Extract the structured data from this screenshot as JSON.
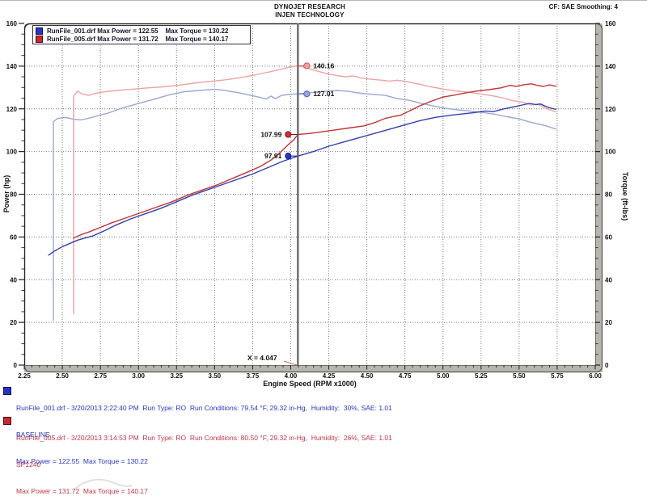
{
  "header": {
    "line1": "DYNOJET RESEARCH",
    "line2": "INJEN TECHNOLOGY",
    "right": "CF: SAE  Smoothing: 4"
  },
  "legend": {
    "rows": [
      {
        "color": "#2832c8",
        "border": "#10104a",
        "text": "RunFile_001.drf Max Power = 122.55    Max Torque = 130.22"
      },
      {
        "color": "#c82832",
        "border": "#4a1010",
        "text": "RunFile_005.drf Max Power = 131.72    Max Torque = 140.17"
      }
    ]
  },
  "chart_data": {
    "type": "line",
    "title": "",
    "xlabel": "Engine Speed (RPM x1000)",
    "ylabel_left": "Power (hp)",
    "ylabel_right": "Torque (ft-lbs)",
    "xlim": [
      2.25,
      6.0
    ],
    "ylim": [
      0,
      160
    ],
    "x_tick_labels": [
      "2.25",
      "2.50",
      "2.75",
      "3.00",
      "3.25",
      "3.50",
      "3.75",
      "4.00",
      "4.25",
      "4.50",
      "4.75",
      "5.00",
      "5.25",
      "5.50",
      "5.75",
      "6.00"
    ],
    "y_tick_labels": [
      "0",
      "20",
      "40",
      "60",
      "80",
      "100",
      "120",
      "140",
      "160"
    ],
    "x_minor_step": 0.05,
    "y_minor_step": 5,
    "grid": "dotted",
    "grid_color": "#777777",
    "cursor": {
      "x": 4.047,
      "label": "X = 4.047",
      "line_color": "#6b6b6b",
      "values": [
        {
          "series": "RunFile_005 Torque",
          "value": 140.16,
          "label": "140.16",
          "side": "right",
          "fill": "#f0a0a0",
          "stroke": "#b86060"
        },
        {
          "series": "RunFile_001 Torque",
          "value": 127.01,
          "label": "127.01",
          "side": "right",
          "fill": "#97a2e0",
          "stroke": "#5868b0"
        },
        {
          "series": "RunFile_005 Power",
          "value": 107.99,
          "label": "107.99",
          "side": "left",
          "fill": "#d23030",
          "stroke": "#7a1818"
        },
        {
          "series": "RunFile_001 Power",
          "value": 97.91,
          "label": "97.91",
          "side": "left",
          "fill": "#2636c6",
          "stroke": "#141e78"
        }
      ]
    },
    "series": [
      {
        "name": "RunFile_001 Torque",
        "color": "#9aa6d4",
        "points": [
          [
            2.441,
            21
          ],
          [
            2.441,
            114
          ],
          [
            2.47,
            115.5
          ],
          [
            2.52,
            116
          ],
          [
            2.57,
            115.2
          ],
          [
            2.62,
            114.8
          ],
          [
            2.67,
            115.5
          ],
          [
            2.72,
            116.5
          ],
          [
            2.8,
            118
          ],
          [
            2.9,
            120.5
          ],
          [
            3.0,
            122.5
          ],
          [
            3.1,
            124.5
          ],
          [
            3.2,
            126.5
          ],
          [
            3.3,
            128
          ],
          [
            3.4,
            128.6
          ],
          [
            3.5,
            129.2
          ],
          [
            3.58,
            128.5
          ],
          [
            3.66,
            127.5
          ],
          [
            3.74,
            126.3
          ],
          [
            3.8,
            125.3
          ],
          [
            3.84,
            124.6
          ],
          [
            3.87,
            126
          ],
          [
            3.9,
            124.8
          ],
          [
            3.94,
            126.3
          ],
          [
            3.99,
            126.8
          ],
          [
            4.047,
            127.01
          ],
          [
            4.12,
            127.5
          ],
          [
            4.22,
            128.2
          ],
          [
            4.3,
            128.6
          ],
          [
            4.38,
            128.2
          ],
          [
            4.46,
            127.3
          ],
          [
            4.54,
            126.8
          ],
          [
            4.62,
            126.3
          ],
          [
            4.7,
            124.8
          ],
          [
            4.78,
            124
          ],
          [
            4.86,
            122.5
          ],
          [
            4.94,
            121.3
          ],
          [
            5.02,
            120.2
          ],
          [
            5.1,
            119.5
          ],
          [
            5.18,
            119
          ],
          [
            5.26,
            118.3
          ],
          [
            5.34,
            117.5
          ],
          [
            5.42,
            116.3
          ],
          [
            5.5,
            115.3
          ],
          [
            5.56,
            114
          ],
          [
            5.62,
            113
          ],
          [
            5.68,
            112
          ],
          [
            5.72,
            111
          ],
          [
            5.74,
            110.6
          ]
        ]
      },
      {
        "name": "RunFile_005 Torque",
        "color": "#eda2a2",
        "points": [
          [
            2.574,
            24
          ],
          [
            2.574,
            126
          ],
          [
            2.6,
            128.3
          ],
          [
            2.63,
            127
          ],
          [
            2.67,
            126.3
          ],
          [
            2.72,
            127.3
          ],
          [
            2.78,
            128
          ],
          [
            2.86,
            128.6
          ],
          [
            2.96,
            129.2
          ],
          [
            3.06,
            129.8
          ],
          [
            3.16,
            130.3
          ],
          [
            3.26,
            131
          ],
          [
            3.36,
            132
          ],
          [
            3.46,
            132.8
          ],
          [
            3.56,
            133.5
          ],
          [
            3.66,
            134.5
          ],
          [
            3.76,
            135.8
          ],
          [
            3.86,
            137.3
          ],
          [
            3.94,
            138.6
          ],
          [
            4.0,
            139.7
          ],
          [
            4.047,
            140.16
          ],
          [
            4.1,
            139.3
          ],
          [
            4.16,
            138
          ],
          [
            4.22,
            136.8
          ],
          [
            4.3,
            135.6
          ],
          [
            4.36,
            135
          ],
          [
            4.41,
            135.4
          ],
          [
            4.47,
            134.4
          ],
          [
            4.54,
            133.8
          ],
          [
            4.6,
            133.4
          ],
          [
            4.65,
            133
          ],
          [
            4.7,
            133.4
          ],
          [
            4.76,
            132.8
          ],
          [
            4.84,
            131.6
          ],
          [
            4.92,
            130.3
          ],
          [
            5.0,
            129.3
          ],
          [
            5.08,
            128.4
          ],
          [
            5.16,
            127.8
          ],
          [
            5.24,
            127
          ],
          [
            5.32,
            126.2
          ],
          [
            5.4,
            125
          ],
          [
            5.46,
            123.8
          ],
          [
            5.52,
            123.2
          ],
          [
            5.58,
            121.8
          ],
          [
            5.62,
            122.2
          ],
          [
            5.66,
            120.8
          ],
          [
            5.7,
            119.6
          ],
          [
            5.74,
            118.6
          ]
        ]
      },
      {
        "name": "RunFile_001 Power",
        "color": "#3340b0",
        "points": [
          [
            2.41,
            51.5
          ],
          [
            2.45,
            53.5
          ],
          [
            2.5,
            55.5
          ],
          [
            2.55,
            57
          ],
          [
            2.6,
            58.5
          ],
          [
            2.65,
            59.5
          ],
          [
            2.7,
            60.5
          ],
          [
            2.78,
            63
          ],
          [
            2.85,
            65.5
          ],
          [
            2.95,
            68.5
          ],
          [
            3.05,
            71
          ],
          [
            3.15,
            73.5
          ],
          [
            3.25,
            76.5
          ],
          [
            3.35,
            79.5
          ],
          [
            3.45,
            82
          ],
          [
            3.55,
            84.5
          ],
          [
            3.65,
            87
          ],
          [
            3.75,
            89.5
          ],
          [
            3.85,
            92.5
          ],
          [
            3.95,
            95.5
          ],
          [
            4.047,
            97.91
          ],
          [
            4.15,
            100
          ],
          [
            4.25,
            102.5
          ],
          [
            4.35,
            104.5
          ],
          [
            4.45,
            106.5
          ],
          [
            4.55,
            108.5
          ],
          [
            4.65,
            110.5
          ],
          [
            4.75,
            112.5
          ],
          [
            4.85,
            114.5
          ],
          [
            4.95,
            116
          ],
          [
            5.05,
            117
          ],
          [
            5.15,
            117.8
          ],
          [
            5.2,
            118.2
          ],
          [
            5.28,
            119
          ],
          [
            5.33,
            118.7
          ],
          [
            5.4,
            120
          ],
          [
            5.47,
            121
          ],
          [
            5.52,
            121.8
          ],
          [
            5.57,
            122.55
          ],
          [
            5.61,
            122
          ],
          [
            5.64,
            122.3
          ],
          [
            5.68,
            121
          ],
          [
            5.71,
            120.3
          ],
          [
            5.74,
            119.8
          ]
        ]
      },
      {
        "name": "RunFile_005 Power",
        "color": "#c03535",
        "points": [
          [
            2.574,
            59.5
          ],
          [
            2.62,
            61
          ],
          [
            2.68,
            62.5
          ],
          [
            2.75,
            64.5
          ],
          [
            2.82,
            66.5
          ],
          [
            2.92,
            69
          ],
          [
            3.02,
            71.5
          ],
          [
            3.12,
            74
          ],
          [
            3.22,
            76.5
          ],
          [
            3.32,
            79.5
          ],
          [
            3.42,
            82
          ],
          [
            3.52,
            84.5
          ],
          [
            3.62,
            87.5
          ],
          [
            3.72,
            90.5
          ],
          [
            3.8,
            93
          ],
          [
            3.87,
            96
          ],
          [
            3.93,
            99.5
          ],
          [
            3.98,
            103
          ],
          [
            4.02,
            105.5
          ],
          [
            4.047,
            107.99
          ],
          [
            4.1,
            108.3
          ],
          [
            4.18,
            109
          ],
          [
            4.28,
            110
          ],
          [
            4.38,
            111
          ],
          [
            4.48,
            112
          ],
          [
            4.55,
            113.5
          ],
          [
            4.62,
            115.5
          ],
          [
            4.68,
            116.5
          ],
          [
            4.72,
            117
          ],
          [
            4.78,
            119
          ],
          [
            4.85,
            121.5
          ],
          [
            4.92,
            123.5
          ],
          [
            5.0,
            125.5
          ],
          [
            5.08,
            126.5
          ],
          [
            5.15,
            127.5
          ],
          [
            5.22,
            128.3
          ],
          [
            5.3,
            129
          ],
          [
            5.38,
            129.8
          ],
          [
            5.44,
            131
          ],
          [
            5.48,
            130.5
          ],
          [
            5.53,
            131.3
          ],
          [
            5.58,
            131.72
          ],
          [
            5.62,
            131
          ],
          [
            5.66,
            130.5
          ],
          [
            5.7,
            131.2
          ],
          [
            5.74,
            130.6
          ]
        ]
      }
    ]
  },
  "footer": {
    "runs": [
      {
        "color": "#2a35c0",
        "swatch": "#2832c8",
        "swatch_border": "#10104a",
        "line1": "RunFile_001.drf - 3/20/2013 2:22:40 PM  Run Type: RO  Run Conditions: 79.54 °F, 29.32 in-Hg,  Humidity:  30%, SAE: 1.01",
        "line2": "BASELINE",
        "line3": "Max Power = 122.55  Max Torque = 130.22"
      },
      {
        "color": "#c03545",
        "swatch": "#c82832",
        "swatch_border": "#4a1010",
        "line1": "RunFile_005.drf - 3/20/2013 3:14:53 PM  Run Type: RO  Run Conditions: 80.50 °F, 29.32 in-Hg,  Humidity:  26%, SAE: 1.01",
        "line2": "SP1240",
        "line3": "Max Power = 131.72  Max Torque = 140.17"
      }
    ]
  }
}
